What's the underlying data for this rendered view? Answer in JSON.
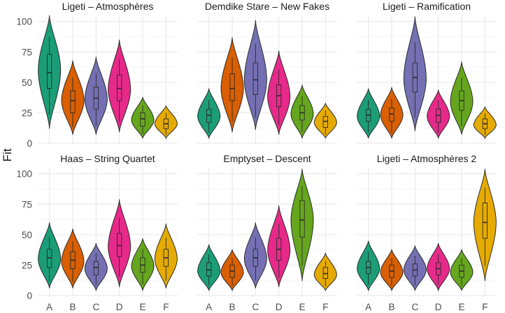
{
  "chart_data": {
    "type": "violin",
    "ylabel": "Fit",
    "xlabel": "",
    "ylim": [
      0,
      105
    ],
    "yticks": [
      0,
      25,
      50,
      75,
      100
    ],
    "categories": [
      "A",
      "B",
      "C",
      "D",
      "E",
      "F"
    ],
    "colors": {
      "A": "#1b9e77",
      "B": "#d95f02",
      "C": "#7570b3",
      "D": "#e7298a",
      "E": "#66a61e",
      "F": "#e6ab02"
    },
    "grid": true,
    "legend": "none",
    "panels": [
      {
        "title": "Ligeti – Atmosphères",
        "series": [
          {
            "category": "A",
            "min": 12,
            "max": 105,
            "q1": 45,
            "median": 58,
            "q3": 73,
            "peak": 60
          },
          {
            "category": "B",
            "min": 7,
            "max": 68,
            "q1": 25,
            "median": 35,
            "q3": 43,
            "peak": 35
          },
          {
            "category": "C",
            "min": 7,
            "max": 71,
            "q1": 28,
            "median": 37,
            "q3": 46,
            "peak": 36
          },
          {
            "category": "D",
            "min": 9,
            "max": 85,
            "q1": 35,
            "median": 45,
            "q3": 56,
            "peak": 44
          },
          {
            "category": "E",
            "min": 4,
            "max": 38,
            "q1": 14,
            "median": 20,
            "q3": 25,
            "peak": 19
          },
          {
            "category": "F",
            "min": 4,
            "max": 31,
            "q1": 12,
            "median": 16,
            "q3": 20,
            "peak": 16
          }
        ]
      },
      {
        "title": "Demdike Stare – New Fakes",
        "series": [
          {
            "category": "A",
            "min": 4,
            "max": 45,
            "q1": 17,
            "median": 23,
            "q3": 28,
            "peak": 22
          },
          {
            "category": "B",
            "min": 9,
            "max": 87,
            "q1": 35,
            "median": 45,
            "q3": 57,
            "peak": 45
          },
          {
            "category": "C",
            "min": 11,
            "max": 101,
            "q1": 40,
            "median": 52,
            "q3": 66,
            "peak": 52
          },
          {
            "category": "D",
            "min": 7,
            "max": 76,
            "q1": 30,
            "median": 39,
            "q3": 48,
            "peak": 38
          },
          {
            "category": "E",
            "min": 4,
            "max": 48,
            "q1": 19,
            "median": 25,
            "q3": 31,
            "peak": 24
          },
          {
            "category": "F",
            "min": 4,
            "max": 33,
            "q1": 13,
            "median": 18,
            "q3": 22,
            "peak": 17
          }
        ]
      },
      {
        "title": "Ligeti – Ramification",
        "series": [
          {
            "category": "A",
            "min": 4,
            "max": 45,
            "q1": 18,
            "median": 23,
            "q3": 28,
            "peak": 22
          },
          {
            "category": "B",
            "min": 4,
            "max": 46,
            "q1": 18,
            "median": 24,
            "q3": 29,
            "peak": 23
          },
          {
            "category": "C",
            "min": 10,
            "max": 104,
            "q1": 42,
            "median": 54,
            "q3": 66,
            "peak": 53
          },
          {
            "category": "D",
            "min": 4,
            "max": 44,
            "q1": 17,
            "median": 23,
            "q3": 28,
            "peak": 22
          },
          {
            "category": "E",
            "min": 7,
            "max": 67,
            "q1": 27,
            "median": 35,
            "q3": 43,
            "peak": 34
          },
          {
            "category": "F",
            "min": 4,
            "max": 30,
            "q1": 12,
            "median": 16,
            "q3": 20,
            "peak": 15
          }
        ]
      },
      {
        "title": "Haas – String Quartet",
        "series": [
          {
            "category": "A",
            "min": 6,
            "max": 60,
            "q1": 23,
            "median": 31,
            "q3": 38,
            "peak": 30
          },
          {
            "category": "B",
            "min": 6,
            "max": 55,
            "q1": 22,
            "median": 29,
            "q3": 36,
            "peak": 28
          },
          {
            "category": "C",
            "min": 4,
            "max": 43,
            "q1": 17,
            "median": 23,
            "q3": 28,
            "peak": 22
          },
          {
            "category": "D",
            "min": 7,
            "max": 79,
            "q1": 32,
            "median": 41,
            "q3": 51,
            "peak": 40
          },
          {
            "category": "E",
            "min": 4,
            "max": 47,
            "q1": 19,
            "median": 25,
            "q3": 31,
            "peak": 24
          },
          {
            "category": "F",
            "min": 6,
            "max": 59,
            "q1": 24,
            "median": 31,
            "q3": 38,
            "peak": 30
          }
        ]
      },
      {
        "title": "Emptyset – Descent",
        "series": [
          {
            "category": "A",
            "min": 4,
            "max": 42,
            "q1": 16,
            "median": 21,
            "q3": 27,
            "peak": 20
          },
          {
            "category": "B",
            "min": 4,
            "max": 38,
            "q1": 15,
            "median": 20,
            "q3": 25,
            "peak": 19
          },
          {
            "category": "C",
            "min": 6,
            "max": 60,
            "q1": 24,
            "median": 31,
            "q3": 38,
            "peak": 30
          },
          {
            "category": "D",
            "min": 7,
            "max": 74,
            "q1": 29,
            "median": 38,
            "q3": 47,
            "peak": 37
          },
          {
            "category": "E",
            "min": 12,
            "max": 104,
            "q1": 48,
            "median": 62,
            "q3": 78,
            "peak": 62
          },
          {
            "category": "F",
            "min": 4,
            "max": 35,
            "q1": 14,
            "median": 18,
            "q3": 23,
            "peak": 17
          }
        ]
      },
      {
        "title": "Ligeti – Atmosphères 2",
        "series": [
          {
            "category": "A",
            "min": 4,
            "max": 45,
            "q1": 18,
            "median": 23,
            "q3": 28,
            "peak": 22
          },
          {
            "category": "B",
            "min": 4,
            "max": 38,
            "q1": 15,
            "median": 20,
            "q3": 25,
            "peak": 19
          },
          {
            "category": "C",
            "min": 4,
            "max": 41,
            "q1": 16,
            "median": 21,
            "q3": 26,
            "peak": 21
          },
          {
            "category": "D",
            "min": 4,
            "max": 43,
            "q1": 17,
            "median": 22,
            "q3": 27,
            "peak": 22
          },
          {
            "category": "E",
            "min": 4,
            "max": 38,
            "q1": 15,
            "median": 20,
            "q3": 25,
            "peak": 19
          },
          {
            "category": "F",
            "min": 12,
            "max": 104,
            "q1": 47,
            "median": 60,
            "q3": 76,
            "peak": 60
          }
        ]
      }
    ]
  }
}
